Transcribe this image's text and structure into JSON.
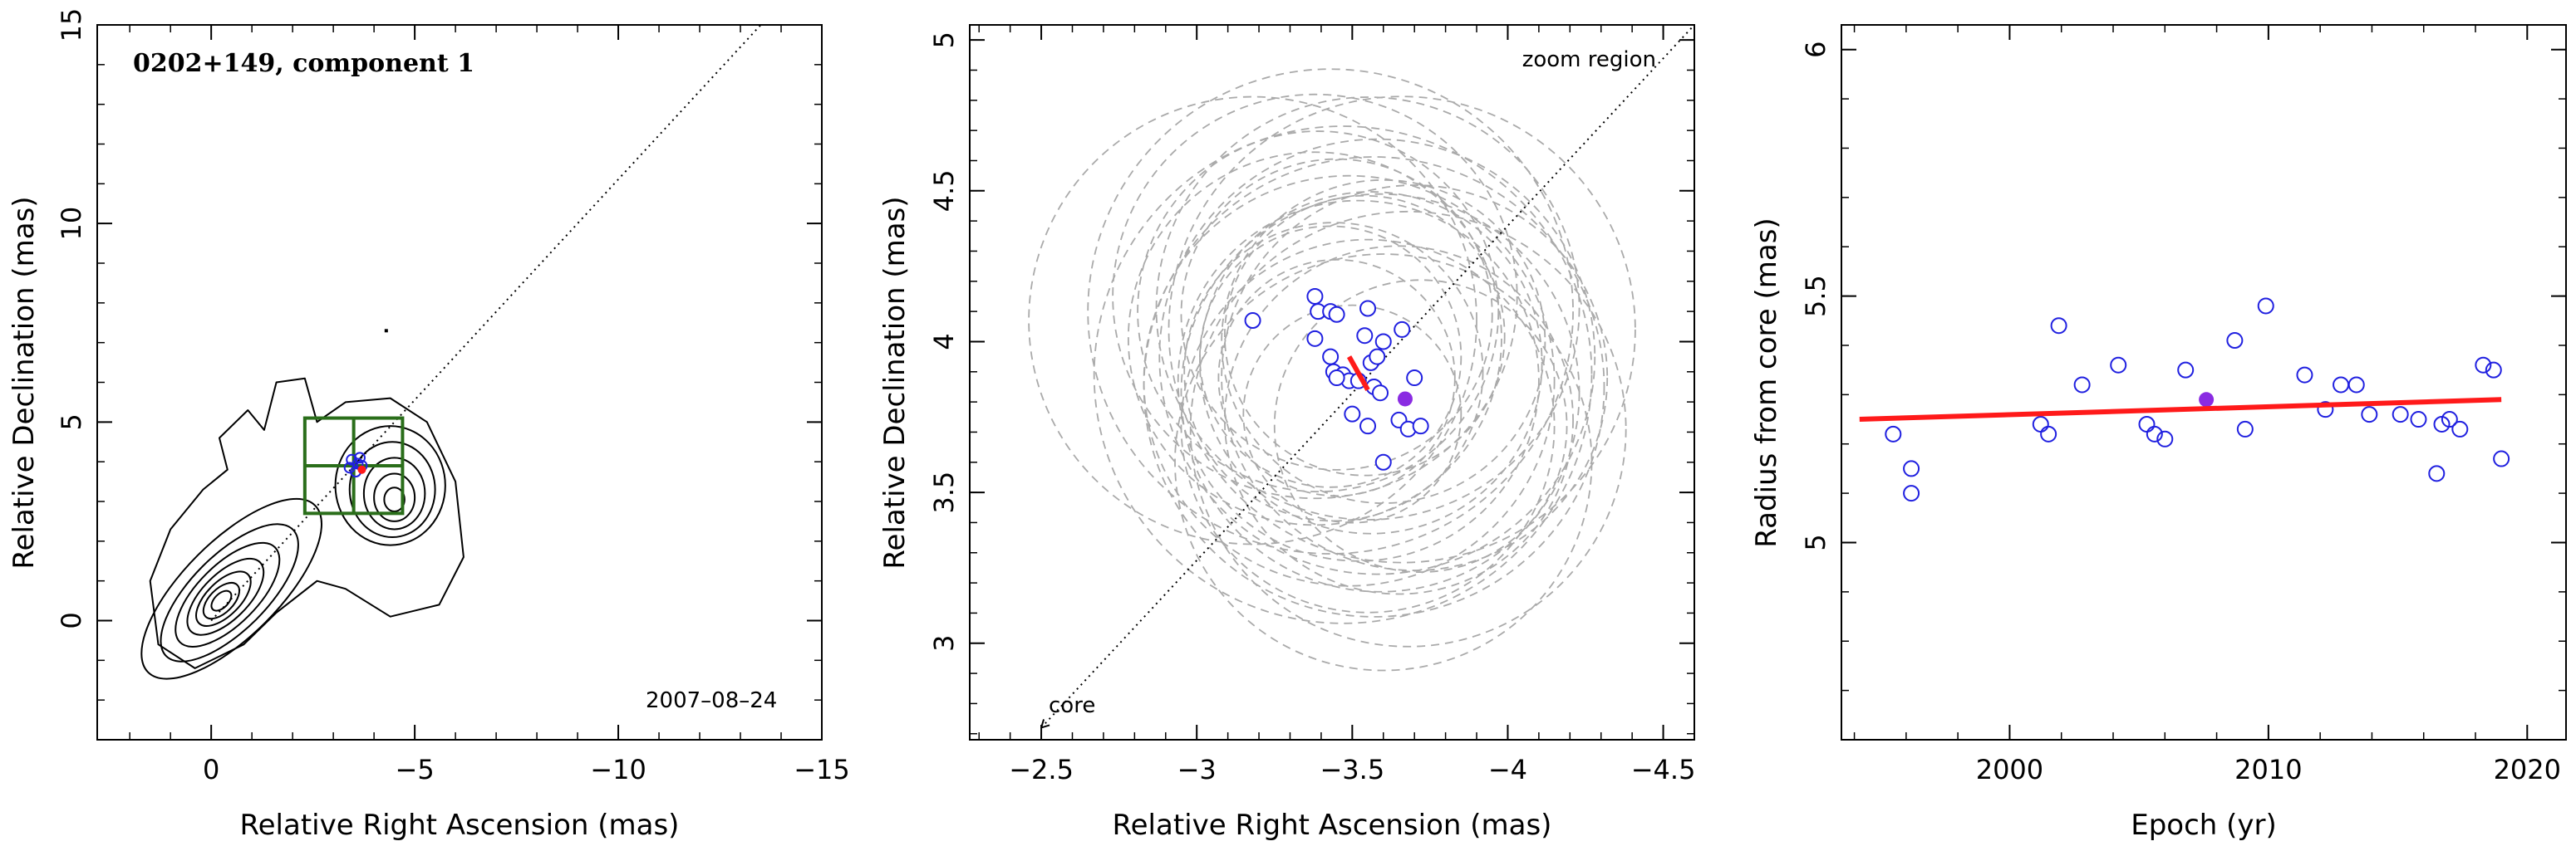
{
  "colors": {
    "frame": "#000000",
    "contour": "#000000",
    "box": "#2a6e1a",
    "epoch_point": "#2020e0",
    "highlight": "#8a2be2",
    "fit_line": "#ff1a1a",
    "circles": "#aaaaaa"
  },
  "chart_data": [
    {
      "type": "contour",
      "panel": "left",
      "annotation_title": "0202+149, component 1",
      "annotation_date": "2007–08–24",
      "xlabel": "Relative Right Ascension (mas)",
      "ylabel": "Relative Declination (mas)",
      "xlim": [
        2.8,
        -15
      ],
      "ylim": [
        -3,
        15
      ],
      "xticks": [
        0,
        -5,
        -10,
        -15
      ],
      "xtick_labels": [
        "0",
        "−5",
        "−10",
        "−15"
      ],
      "yticks": [
        0,
        5,
        10,
        15
      ],
      "ytick_labels": [
        "0",
        "5",
        "10",
        "15"
      ],
      "core_contours": [
        {
          "cx": -0.5,
          "cy": 0.8,
          "rx": 5.8,
          "ry": 2.4,
          "rot": 45
        },
        {
          "cx": -0.45,
          "cy": 0.7,
          "rx": 4.4,
          "ry": 1.9,
          "rot": 45
        },
        {
          "cx": -0.4,
          "cy": 0.65,
          "rx": 3.3,
          "ry": 1.5,
          "rot": 45
        },
        {
          "cx": -0.35,
          "cy": 0.6,
          "rx": 2.4,
          "ry": 1.15,
          "rot": 45
        },
        {
          "cx": -0.3,
          "cy": 0.55,
          "rx": 1.7,
          "ry": 0.85,
          "rot": 45
        },
        {
          "cx": -0.25,
          "cy": 0.5,
          "rx": 1.1,
          "ry": 0.6,
          "rot": 45
        },
        {
          "cx": -0.25,
          "cy": 0.5,
          "rx": 0.6,
          "ry": 0.35,
          "rot": 45
        }
      ],
      "component_contours": [
        {
          "cx": -4.4,
          "cy": 3.4,
          "rx": 2.7,
          "ry": 3.0,
          "rot": 0
        },
        {
          "cx": -4.45,
          "cy": 3.3,
          "rx": 2.1,
          "ry": 2.4,
          "rot": 0
        },
        {
          "cx": -4.5,
          "cy": 3.2,
          "rx": 1.5,
          "ry": 1.8,
          "rot": 0
        },
        {
          "cx": -4.5,
          "cy": 3.1,
          "rx": 1.0,
          "ry": 1.2,
          "rot": 0
        },
        {
          "cx": -4.5,
          "cy": 3.05,
          "rx": 0.5,
          "ry": 0.6,
          "rot": 0
        }
      ],
      "outer_contour": [
        [
          1.3,
          -0.6
        ],
        [
          0.4,
          -1.2
        ],
        [
          -0.8,
          -0.6
        ],
        [
          -1.6,
          0.2
        ],
        [
          -2.6,
          1.0
        ],
        [
          -3.3,
          0.8
        ],
        [
          -4.4,
          0.1
        ],
        [
          -5.6,
          0.4
        ],
        [
          -6.2,
          1.6
        ],
        [
          -6.0,
          3.5
        ],
        [
          -5.3,
          5.0
        ],
        [
          -4.4,
          5.6
        ],
        [
          -3.3,
          5.5
        ],
        [
          -2.6,
          5.0
        ],
        [
          -2.3,
          6.1
        ],
        [
          -1.6,
          6.0
        ],
        [
          -1.3,
          4.8
        ],
        [
          -0.9,
          5.3
        ],
        [
          -0.2,
          4.6
        ],
        [
          -0.4,
          3.8
        ],
        [
          0.2,
          3.3
        ],
        [
          1.0,
          2.3
        ],
        [
          1.5,
          1.0
        ]
      ],
      "noise_marks": [
        {
          "x": -4.3,
          "y": 7.3
        }
      ],
      "zoom_box": {
        "x0": -2.3,
        "x1": -4.7,
        "y0": 2.7,
        "y1": 5.1,
        "x_mid": -3.5,
        "y_mid": 3.9
      },
      "jet_axis": [
        [
          0,
          0
        ],
        [
          -13.5,
          15
        ]
      ],
      "component_points": [
        [
          -3.45,
          4.05
        ],
        [
          -3.6,
          3.95
        ],
        [
          -3.4,
          3.85
        ],
        [
          -3.7,
          3.9
        ],
        [
          -3.55,
          3.75
        ],
        [
          -3.65,
          4.1
        ]
      ],
      "highlight_point": [
        -3.7,
        3.8
      ]
    },
    {
      "type": "scatter",
      "panel": "middle",
      "annotation_title": "zoom region",
      "annotation_core": "core",
      "xlabel": "Relative Right Ascension (mas)",
      "ylabel": "Relative Declination (mas)",
      "xlim": [
        -2.27,
        -4.6
      ],
      "ylim": [
        2.68,
        5.05
      ],
      "xticks": [
        -2.5,
        -3,
        -3.5,
        -4,
        -4.5
      ],
      "xtick_labels": [
        "−2.5",
        "−3",
        "−3.5",
        "−4",
        "−4.5"
      ],
      "yticks": [
        3,
        3.5,
        4,
        4.5,
        5
      ],
      "ytick_labels": [
        "3",
        "3.5",
        "4",
        "4.5",
        "5"
      ],
      "jet_axis": [
        [
          -2.5,
          2.72
        ],
        [
          -4.6,
          5.05
        ]
      ],
      "circle_radius_scale": 1,
      "points": [
        [
          -3.18,
          4.07
        ],
        [
          -3.38,
          4.15
        ],
        [
          -3.39,
          4.1
        ],
        [
          -3.43,
          4.1
        ],
        [
          -3.45,
          4.09
        ],
        [
          -3.55,
          4.11
        ],
        [
          -3.38,
          4.01
        ],
        [
          -3.6,
          4.0
        ],
        [
          -3.54,
          4.02
        ],
        [
          -3.66,
          4.04
        ],
        [
          -3.7,
          3.88
        ],
        [
          -3.43,
          3.95
        ],
        [
          -3.56,
          3.93
        ],
        [
          -3.58,
          3.95
        ],
        [
          -3.44,
          3.9
        ],
        [
          -3.47,
          3.89
        ],
        [
          -3.49,
          3.87
        ],
        [
          -3.45,
          3.88
        ],
        [
          -3.52,
          3.87
        ],
        [
          -3.57,
          3.85
        ],
        [
          -3.59,
          3.83
        ],
        [
          -3.5,
          3.76
        ],
        [
          -3.55,
          3.72
        ],
        [
          -3.65,
          3.74
        ],
        [
          -3.68,
          3.71
        ],
        [
          -3.72,
          3.72
        ],
        [
          -3.6,
          3.6
        ]
      ],
      "radii": [
        0.72,
        0.65,
        0.58,
        0.78,
        0.5,
        0.68,
        0.6,
        0.52,
        0.45,
        0.75,
        0.62,
        0.42,
        0.55,
        0.7,
        0.48,
        0.8,
        0.66,
        0.38,
        0.58,
        0.74,
        0.64,
        0.35,
        0.6,
        0.56,
        0.7,
        0.47,
        0.67
      ],
      "highlight_point": [
        -3.67,
        3.81
      ],
      "motion_segment": [
        [
          -3.49,
          3.95
        ],
        [
          -3.55,
          3.84
        ]
      ]
    },
    {
      "type": "scatter",
      "panel": "right",
      "xlabel": "Epoch (yr)",
      "ylabel": "Radius from core (mas)",
      "xlim": [
        1993.5,
        2021.5
      ],
      "ylim": [
        4.6,
        6.05
      ],
      "xticks": [
        2000,
        2010,
        2020
      ],
      "xtick_labels": [
        "2000",
        "2010",
        "2020"
      ],
      "yticks": [
        5,
        5.5,
        6
      ],
      "ytick_labels": [
        "5",
        "5.5",
        "6"
      ],
      "points": [
        [
          1995.5,
          5.22
        ],
        [
          1996.2,
          5.15
        ],
        [
          1996.2,
          5.1
        ],
        [
          2001.2,
          5.24
        ],
        [
          2001.5,
          5.22
        ],
        [
          2001.9,
          5.44
        ],
        [
          2002.8,
          5.32
        ],
        [
          2004.2,
          5.36
        ],
        [
          2005.3,
          5.24
        ],
        [
          2005.6,
          5.22
        ],
        [
          2006.0,
          5.21
        ],
        [
          2006.8,
          5.35
        ],
        [
          2009.1,
          5.23
        ],
        [
          2008.7,
          5.41
        ],
        [
          2009.9,
          5.48
        ],
        [
          2011.4,
          5.34
        ],
        [
          2012.2,
          5.27
        ],
        [
          2012.8,
          5.32
        ],
        [
          2013.4,
          5.32
        ],
        [
          2013.9,
          5.26
        ],
        [
          2015.1,
          5.26
        ],
        [
          2015.8,
          5.25
        ],
        [
          2016.5,
          5.14
        ],
        [
          2016.7,
          5.24
        ],
        [
          2017.0,
          5.25
        ],
        [
          2017.4,
          5.23
        ],
        [
          2018.3,
          5.36
        ],
        [
          2018.7,
          5.35
        ],
        [
          2019.0,
          5.17
        ]
      ],
      "highlight_point": [
        2007.6,
        5.29
      ],
      "fit_line": [
        [
          1994.2,
          5.25
        ],
        [
          2019.0,
          5.29
        ]
      ]
    }
  ]
}
